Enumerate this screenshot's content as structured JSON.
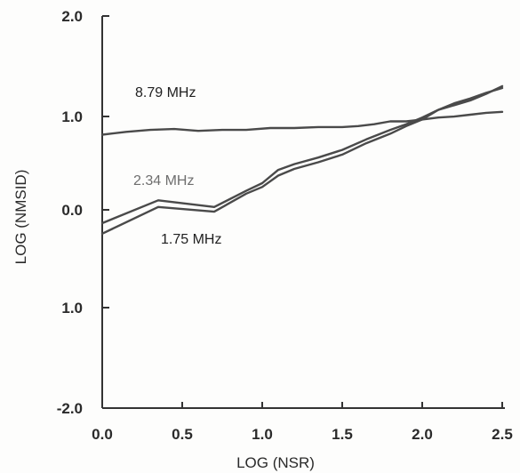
{
  "chart_data": {
    "type": "line",
    "xlabel": "LOG  (NSR)",
    "ylabel": "LOG  (NMSID)",
    "xlim": [
      0,
      2.5
    ],
    "ylim": [
      -2.0,
      2.0
    ],
    "x_ticks": [
      "0.0",
      "0.5",
      "1.0",
      "1.5",
      "2.0",
      "2.5"
    ],
    "y_ticks": [
      "2.0",
      "1.0",
      "0.0",
      "1.0",
      "-2.0"
    ],
    "grid": false,
    "legend": "inline labels",
    "series": [
      {
        "name": "8.79  MHz",
        "color": "#4a4a4a",
        "x": [
          0.0,
          0.15,
          0.3,
          0.45,
          0.6,
          0.75,
          0.9,
          1.05,
          1.2,
          1.35,
          1.5,
          1.6,
          1.7,
          1.8,
          1.9,
          2.0,
          2.1,
          2.2,
          2.3,
          2.4,
          2.5
        ],
        "y": [
          0.79,
          0.82,
          0.84,
          0.85,
          0.83,
          0.84,
          0.84,
          0.86,
          0.86,
          0.87,
          0.87,
          0.88,
          0.9,
          0.93,
          0.93,
          0.95,
          0.97,
          0.98,
          1.0,
          1.02,
          1.03
        ]
      },
      {
        "name": "2.34  MHz",
        "color": "#4a4a4a",
        "x": [
          0.0,
          0.35,
          0.7,
          0.9,
          1.0,
          1.1,
          1.2,
          1.35,
          1.5,
          1.65,
          1.8,
          1.9,
          2.0,
          2.1,
          2.2,
          2.3,
          2.4,
          2.5
        ],
        "y": [
          -0.14,
          0.1,
          0.03,
          0.2,
          0.28,
          0.42,
          0.48,
          0.55,
          0.63,
          0.74,
          0.84,
          0.9,
          0.97,
          1.05,
          1.1,
          1.15,
          1.22,
          1.3
        ]
      },
      {
        "name": "1.75  MHz",
        "color": "#4a4a4a",
        "x": [
          0.0,
          0.35,
          0.7,
          0.9,
          1.0,
          1.1,
          1.2,
          1.35,
          1.5,
          1.65,
          1.8,
          1.9,
          2.0,
          2.1,
          2.2,
          2.3,
          2.4,
          2.5
        ],
        "y": [
          -0.25,
          0.03,
          -0.02,
          0.17,
          0.24,
          0.36,
          0.43,
          0.5,
          0.58,
          0.7,
          0.8,
          0.88,
          0.95,
          1.05,
          1.12,
          1.17,
          1.23,
          1.28
        ]
      }
    ]
  }
}
